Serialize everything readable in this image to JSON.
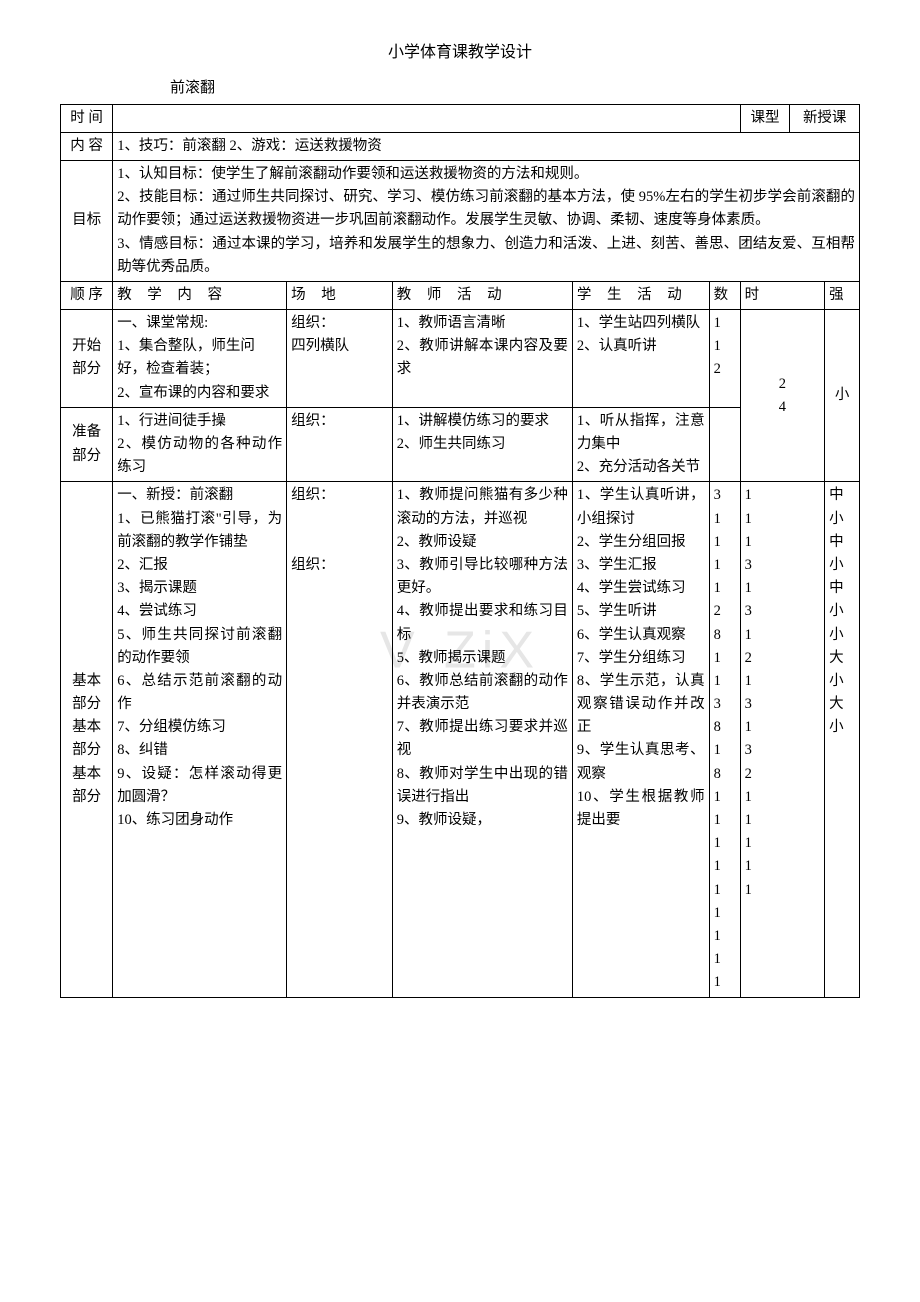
{
  "title": "小学体育课教学设计",
  "subtitle": "前滚翻",
  "watermark": "V·ZiX",
  "row1": {
    "label": "时 间",
    "value": "",
    "ktype_label": "课型",
    "ktype_value": "新授课"
  },
  "row2": {
    "label": "内 容",
    "value": "1、技巧：前滚翻 2、游戏：运送救援物资"
  },
  "row3": {
    "label": "目标",
    "value": "1、认知目标：使学生了解前滚翻动作要领和运送救援物资的方法和规则。\n2、技能目标：通过师生共同探讨、研究、学习、模仿练习前滚翻的基本方法，使 95%左右的学生初步学会前滚翻的动作要领；通过运送救援物资进一步巩固前滚翻动作。发展学生灵敏、协调、柔韧、速度等身体素质。\n3、情感目标：通过本课的学习，培养和发展学生的想象力、创造力和活泼、上进、刻苦、善思、团结友爱、互相帮助等优秀品质。"
  },
  "header": {
    "c1": "顺 序",
    "c2": "教 学 内 容",
    "c3": "场 地",
    "c4": "教 师 活 动",
    "c5": "学 生 活 动",
    "c6": "数",
    "c7": "时",
    "c8": "强"
  },
  "section_start": {
    "label": "开始部分",
    "content": "一、课堂常规:\n1、集合整队，师生问好，检查着装；\n2、宣布课的内容和要求",
    "place": "组织：\n四列横队",
    "teacher": "1、教师语言清晰\n2、教师讲解本课内容及要求",
    "student": "1、学生站四列横队\n2、认真听讲",
    "num": "1\n1\n2",
    "time": "2\n4",
    "intensity": "小"
  },
  "section_prep": {
    "label": "准备部分",
    "content": "1、行进间徒手操\n2、模仿动物的各种动作练习",
    "place": "组织：",
    "teacher": "1、讲解模仿练习的要求\n2、师生共同练习",
    "student": "1、听从指挥，注意力集中\n2、充分活动各关节",
    "num": "",
    "time": "",
    "intensity": ""
  },
  "section_main": {
    "label": "基本部分基本部分基本部分",
    "content": "一、新授：前滚翻\n1、已熊猫打滚\"引导，为前滚翻的教学作铺垫\n2、汇报\n3、揭示课题\n4、尝试练习\n5、师生共同探讨前滚翻的动作要领\n6、总结示范前滚翻的动作\n7、分组模仿练习\n8、纠错\n9、设疑：怎样滚动得更加圆滑？\n10、练习团身动作",
    "place": "组织：\n\n\n组织：",
    "teacher": "1、教师提问熊猫有多少种滚动的方法，并巡视\n2、教师设疑\n3、教师引导比较哪种方法更好。\n4、教师提出要求和练习目标\n5、教师揭示课题\n6、教师总结前滚翻的动作并表演示范\n7、教师提出练习要求并巡视\n8、教师对学生中出现的错误进行指出\n9、教师设疑，",
    "student": "1、学生认真听讲，小组探讨\n2、学生分组回报\n3、学生汇报\n4、学生尝试练习\n5、学生听讲\n6、学生认真观察\n7、学生分组练习\n8、学生示范，认真观察错误动作并改正\n9、学生认真思考、观察\n10、学生根据教师提出要",
    "num": "3\n1\n1\n1\n1\n2\n8\n1\n1\n3\n8\n1\n8\n1\n1\n1\n1\n1\n1\n1\n1\n1",
    "time": "1\n1\n1\n3\n1\n3\n1\n2\n1\n3\n1\n3\n2\n1\n1\n1\n1\n1",
    "intensity": "中\n小\n中\n小\n中\n小\n小\n大\n小\n大\n小"
  },
  "colors": {
    "text": "#000000",
    "bg": "#ffffff",
    "border": "#000000",
    "watermark": "#e6e6e6"
  }
}
